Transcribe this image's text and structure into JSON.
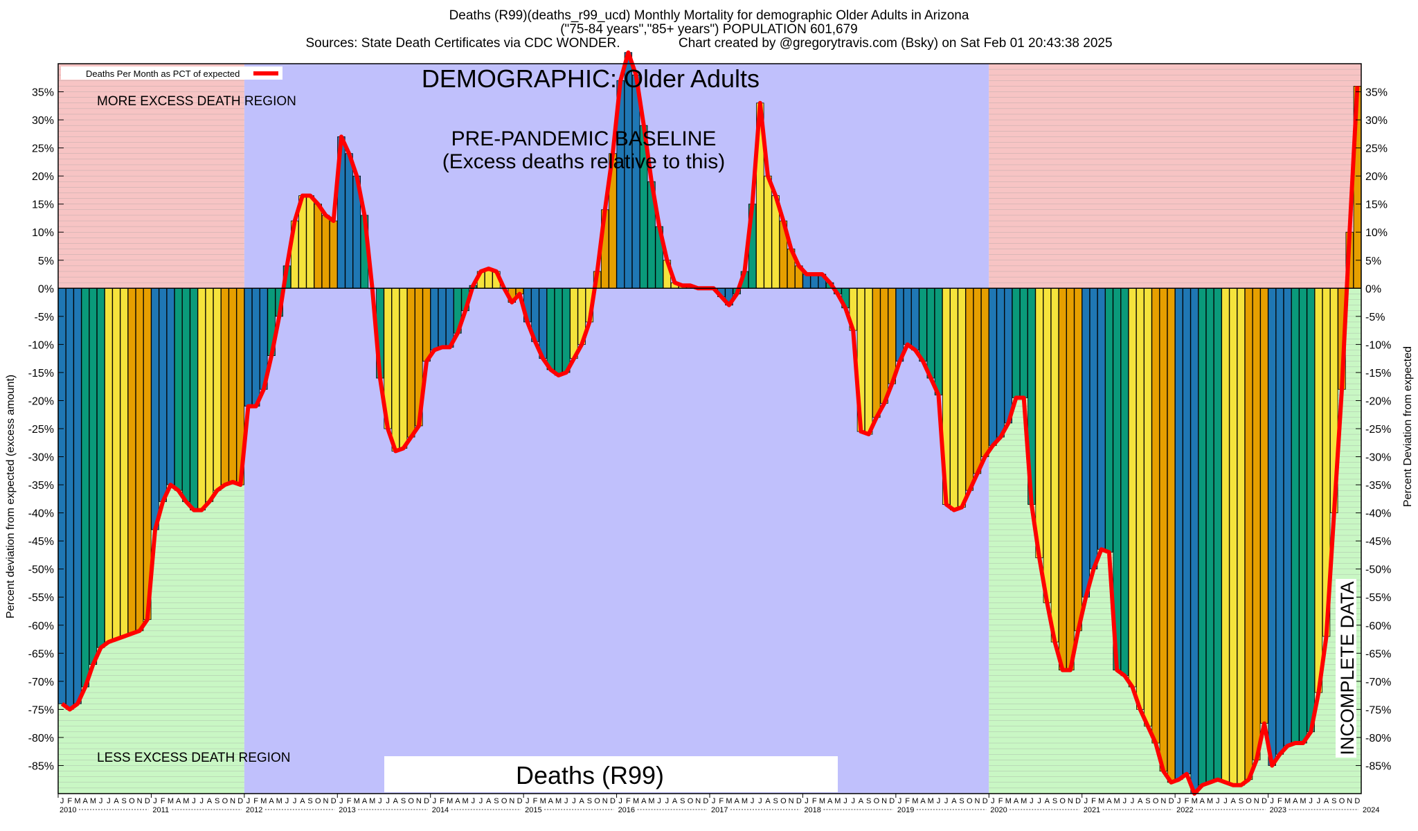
{
  "header": {
    "line1": "Deaths (R99)(deaths_r99_ucd) Monthly Mortality for demographic Older Adults in Arizona",
    "line2": "(\"75-84 years\",\"85+ years\") POPULATION 601,679",
    "line3": "Sources: State Death Certificates via CDC WONDER.                Chart created by @gregorytravis.com (Bsky) on Sat Feb 01 20:43:38 2025"
  },
  "colors": {
    "excess_region": "#f7c4c4",
    "less_region": "#c9f7c4",
    "baseline_region": "#c0c0fc",
    "line": "#ff0000",
    "bars": [
      "#1f77b4",
      "#0a9a7a",
      "#f5e33c",
      "#e69f00"
    ]
  },
  "chart_data": {
    "type": "bar",
    "title": "DEMOGRAPHIC: Older Adults",
    "bottom_label": "Deaths (R99)",
    "ylabel_left": "Percent deviation from expected (excess amount)",
    "ylabel_right": "Percent Deviation from expected",
    "legend": {
      "label": "Deaths Per Month as PCT of expected",
      "position": "top-left"
    },
    "annotations": {
      "more": "MORE EXCESS DEATH REGION",
      "less": "LESS EXCESS DEATH REGION",
      "baseline_line1": "PRE-PANDEMIC BASELINE",
      "baseline_line2": "(Excess deaths relative to this)",
      "incomplete": "INCOMPLETE DATA"
    },
    "ylim": [
      -90,
      40
    ],
    "yticks": [
      35,
      30,
      25,
      20,
      15,
      10,
      5,
      0,
      -5,
      -10,
      -15,
      -20,
      -25,
      -30,
      -35,
      -40,
      -45,
      -50,
      -55,
      -60,
      -65,
      -70,
      -75,
      -80,
      -85
    ],
    "ytick_labels": [
      "35%",
      "30%",
      "25%",
      "20%",
      "15%",
      "10%",
      "5%",
      "0%",
      "-5%",
      "-10%",
      "-15%",
      "-20%",
      "-25%",
      "-30%",
      "-35%",
      "-40%",
      "-45%",
      "-50%",
      "-55%",
      "-60%",
      "-65%",
      "-70%",
      "-75%",
      "-80%",
      "-85%"
    ],
    "month_letters": [
      "J",
      "F",
      "M",
      "A",
      "M",
      "J",
      "J",
      "A",
      "S",
      "O",
      "N",
      "D"
    ],
    "years": [
      "2010",
      "2011",
      "2012",
      "2013",
      "2014",
      "2015",
      "2016",
      "2017",
      "2018",
      "2019",
      "2020",
      "2021",
      "2022",
      "2023",
      "2024"
    ],
    "start": "2010-01",
    "baseline_period": [
      "2012-01",
      "2019-12"
    ],
    "incomplete_from": "2024-09",
    "values": [
      -74,
      -75,
      -74,
      -71,
      -67,
      -64,
      -63,
      -62.5,
      -62,
      -61.5,
      -61,
      -59,
      -43,
      -38,
      -35,
      -36,
      -38,
      -39.5,
      -39.5,
      -38,
      -36,
      -35,
      -34.5,
      -35,
      -21,
      -21,
      -18,
      -12,
      -5,
      4,
      12,
      16.5,
      16.5,
      15,
      13,
      12,
      27,
      24,
      20,
      13,
      0,
      -16,
      -25,
      -29,
      -28.5,
      -26.5,
      -24.5,
      -13,
      -11,
      -10.5,
      -10.5,
      -8,
      -4,
      0.5,
      3,
      3.5,
      3,
      0,
      -2.5,
      -1,
      -6,
      -9.5,
      -12.5,
      -14.5,
      -15.5,
      -15,
      -12.5,
      -10,
      -6,
      3,
      14,
      24,
      37,
      42,
      38,
      29,
      19,
      11,
      5,
      1,
      0.5,
      0.5,
      0,
      0,
      0,
      -1.5,
      -3,
      -1,
      3,
      15,
      33,
      20,
      16.5,
      12,
      7,
      4,
      2.5,
      2.5,
      2.5,
      1,
      -1,
      -3.5,
      -7.5,
      -25.5,
      -26,
      -23,
      -20.5,
      -17,
      -13,
      -10,
      -11,
      -13,
      -16,
      -19,
      -38.5,
      -39.5,
      -39,
      -36,
      -33,
      -30,
      -28,
      -26.5,
      -24,
      -19.5,
      -19.5,
      -38.5,
      -48,
      -56,
      -63,
      -68,
      -68,
      -61,
      -55,
      -50,
      -46.5,
      -47,
      -68,
      -69,
      -71,
      -75,
      -78,
      -81,
      -86,
      -88,
      -87.5,
      -86.5,
      -90,
      -88.5,
      -88,
      -87.5,
      -88,
      -88.5,
      -88.5,
      -87.5,
      -84,
      -77.5,
      -85,
      -83,
      -81.5,
      -81,
      -81,
      -79,
      -72,
      -62,
      -40,
      -18,
      10,
      36
    ]
  }
}
